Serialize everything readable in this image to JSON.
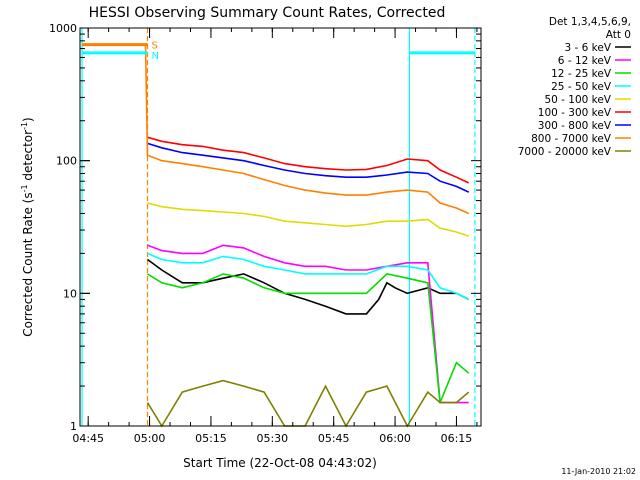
{
  "chart_data": {
    "type": "line",
    "title": "HESSI Observing Summary Count Rates, Corrected",
    "xlabel": "Start Time (22-Oct-08 04:43:02)",
    "ylabel_main": "Corrected Count Rate (s",
    "ylabel_sup1": "-1",
    "ylabel_mid": " detector",
    "ylabel_sup2": "-1",
    "ylabel_end": ")",
    "y_scale": "log",
    "ylim": [
      1,
      1000
    ],
    "xlim_minutes": [
      0,
      98
    ],
    "yticks": [
      {
        "value": 1,
        "label": "1"
      },
      {
        "value": 10,
        "label": "10"
      },
      {
        "value": 100,
        "label": "100"
      },
      {
        "value": 1000,
        "label": "1000"
      }
    ],
    "xticks": [
      {
        "minutes": 2,
        "label": "04:45"
      },
      {
        "minutes": 17,
        "label": "05:00"
      },
      {
        "minutes": 32,
        "label": "05:15"
      },
      {
        "minutes": 47,
        "label": "05:30"
      },
      {
        "minutes": 62,
        "label": "05:45"
      },
      {
        "minutes": 77,
        "label": "06:00"
      },
      {
        "minutes": 92,
        "label": "06:15"
      }
    ],
    "legend_header": [
      "Det 1,3,4,5,6,9,",
      "Att 0"
    ],
    "legend_position": "right",
    "series": [
      {
        "name": "3 - 6 keV",
        "color": "#000000",
        "x": [
          16.5,
          20,
          25,
          30,
          35,
          40,
          45,
          50,
          55,
          60,
          65,
          70,
          73,
          75,
          77,
          80,
          85,
          88,
          92,
          95
        ],
        "values": [
          18,
          15,
          12,
          12,
          13,
          14,
          12,
          10,
          9,
          8,
          7,
          7,
          9,
          12,
          11,
          10,
          11,
          10,
          10,
          9
        ]
      },
      {
        "name": "6 - 12 keV",
        "color": "#ff00ff",
        "x": [
          16.5,
          20,
          25,
          30,
          35,
          40,
          45,
          50,
          55,
          60,
          65,
          70,
          75,
          80,
          85,
          88,
          92,
          95
        ],
        "values": [
          23,
          21,
          20,
          20,
          23,
          22,
          19,
          17,
          16,
          16,
          15,
          15,
          16,
          17,
          17,
          1.5,
          1.5,
          1.5
        ]
      },
      {
        "name": "12 - 25 keV",
        "color": "#00dd00",
        "x": [
          16.5,
          20,
          25,
          30,
          35,
          40,
          45,
          50,
          55,
          60,
          65,
          70,
          75,
          80,
          85,
          88,
          92,
          95
        ],
        "values": [
          14,
          12,
          11,
          12,
          14,
          13,
          11,
          10,
          10,
          10,
          10,
          10,
          14,
          13,
          12,
          1.5,
          3,
          2.5
        ]
      },
      {
        "name": "25 - 50 keV",
        "color": "#00ffff",
        "x": [
          16.5,
          20,
          25,
          30,
          35,
          40,
          45,
          50,
          55,
          60,
          65,
          70,
          75,
          80,
          85,
          88,
          92,
          95
        ],
        "values": [
          20,
          18,
          17,
          17,
          19,
          18,
          16,
          15,
          14,
          14,
          14,
          14,
          16,
          16,
          15,
          11,
          10,
          9
        ]
      },
      {
        "name": "50 - 100 keV",
        "color": "#dddd00",
        "x": [
          16.5,
          20,
          25,
          30,
          35,
          40,
          45,
          50,
          55,
          60,
          65,
          70,
          75,
          80,
          85,
          88,
          92,
          95
        ],
        "values": [
          48,
          45,
          43,
          42,
          41,
          40,
          38,
          35,
          34,
          33,
          32,
          33,
          35,
          35,
          36,
          31,
          29,
          27
        ]
      },
      {
        "name": "100 - 300 keV",
        "color": "#ff0000",
        "x": [
          16.5,
          20,
          25,
          30,
          35,
          40,
          45,
          50,
          55,
          60,
          65,
          70,
          75,
          80,
          85,
          88,
          92,
          95
        ],
        "values": [
          150,
          140,
          132,
          128,
          120,
          115,
          105,
          95,
          90,
          87,
          85,
          86,
          92,
          103,
          100,
          85,
          75,
          68
        ]
      },
      {
        "name": "300 - 800 keV",
        "color": "#0000ff",
        "x": [
          16.5,
          20,
          25,
          30,
          35,
          40,
          45,
          50,
          55,
          60,
          65,
          70,
          75,
          80,
          85,
          88,
          92,
          95
        ],
        "values": [
          135,
          125,
          115,
          110,
          105,
          100,
          92,
          85,
          80,
          77,
          75,
          75,
          78,
          82,
          80,
          70,
          64,
          58
        ]
      },
      {
        "name": "800 - 7000 keV",
        "color": "#ff8000",
        "x": [
          0.5,
          16,
          16.5,
          20,
          25,
          30,
          35,
          40,
          45,
          50,
          55,
          60,
          65,
          70,
          75,
          80,
          85,
          88,
          92,
          95
        ],
        "values": [
          750,
          750,
          110,
          100,
          95,
          90,
          85,
          80,
          72,
          65,
          60,
          57,
          55,
          55,
          58,
          60,
          58,
          48,
          44,
          40
        ]
      },
      {
        "name": "7000 - 20000 keV",
        "color": "#808000",
        "x": [
          16.5,
          20,
          25,
          30,
          35,
          40,
          45,
          50,
          55,
          60,
          65,
          70,
          75,
          80,
          85,
          88,
          92,
          95
        ],
        "values": [
          1.5,
          1,
          1.8,
          2.0,
          2.2,
          2.0,
          1.8,
          1.0,
          1.0,
          2.0,
          1.0,
          1.8,
          2.0,
          1.0,
          1.8,
          1.5,
          1.5,
          1.8
        ]
      }
    ],
    "flag_labels": [
      {
        "text": "S",
        "color": "#ff8000"
      },
      {
        "text": "N",
        "color": "#00ffff"
      }
    ],
    "flags": [
      {
        "type": "S",
        "value": 750,
        "x_start": 0.5,
        "x_end": 16.5
      },
      {
        "type": "N",
        "value": 650,
        "x_start": 0.5,
        "x_end": 16.5
      },
      {
        "type": "N",
        "value": 650,
        "x_start": 80.5,
        "x_end": 96.5
      }
    ],
    "markers": [
      {
        "minutes": 0.5,
        "color": "#00ffff",
        "style": "solid"
      },
      {
        "minutes": 16.5,
        "color": "#ff8000",
        "style": "dashed"
      },
      {
        "minutes": 80.5,
        "color": "#00ffff",
        "style": "solid"
      },
      {
        "minutes": 96.5,
        "color": "#00ffff",
        "style": "dashed"
      }
    ],
    "timestamp": "11-Jan-2010 21:02"
  }
}
